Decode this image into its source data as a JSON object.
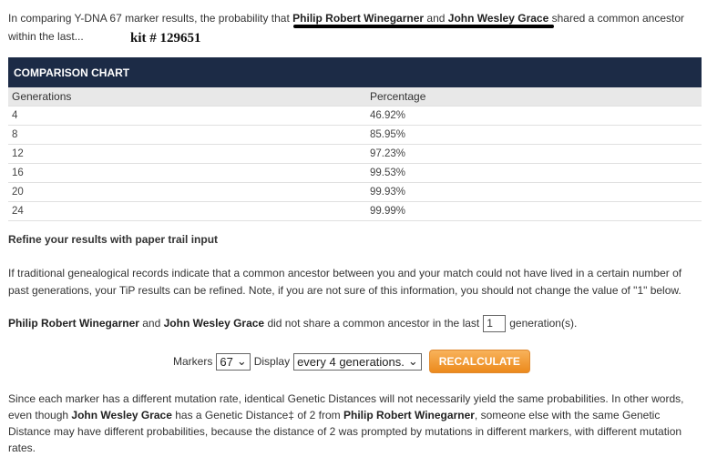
{
  "intro": {
    "t1": "In comparing Y-DNA 67 marker results, the probability that ",
    "name1": "Philip Robert Winegarner",
    "t2": " and ",
    "name2": "John Wesley Grace",
    "t3": " shared a common ancestor within the last..."
  },
  "kit": "kit # 129651",
  "table": {
    "caption": "COMPARISON CHART",
    "headers": [
      "Generations",
      "Percentage"
    ],
    "rows": [
      [
        "4",
        "46.92%"
      ],
      [
        "8",
        "85.95%"
      ],
      [
        "12",
        "97.23%"
      ],
      [
        "16",
        "99.53%"
      ],
      [
        "20",
        "99.93%"
      ],
      [
        "24",
        "99.99%"
      ]
    ]
  },
  "refine": {
    "title": "Refine your results with paper trail input",
    "para": "If traditional genealogical records indicate that a common ancestor between you and your match could not have lived in a certain number of past generations, your TiP results can be refined. Note, if you are not sure of this information, you should not change the value of \"1\" below.",
    "name1": "Philip Robert Winegarner",
    "and": " and ",
    "name2": "John Wesley Grace",
    "t": " did not share a common ancestor in the last",
    "value": "1",
    "suffix": "generation(s)."
  },
  "controls": {
    "markers_label": "Markers",
    "markers_value": "67",
    "display_label": "Display",
    "display_value": "every 4 generations.",
    "button": "RECALCULATE",
    "accent": "#ec8a1c"
  },
  "footer": {
    "t1": "Since each marker has a different mutation rate, identical Genetic Distances will not necessarily yield the same probabilities. In other words, even though ",
    "n1": "John Wesley Grace",
    "t2": " has a Genetic Distance‡ of 2 from ",
    "n2": "Philip Robert Winegarner",
    "t3": ", someone else with the same Genetic Distance may have different probabilities, because the distance of 2 was prompted by mutations in different markers, with different mutation rates."
  }
}
